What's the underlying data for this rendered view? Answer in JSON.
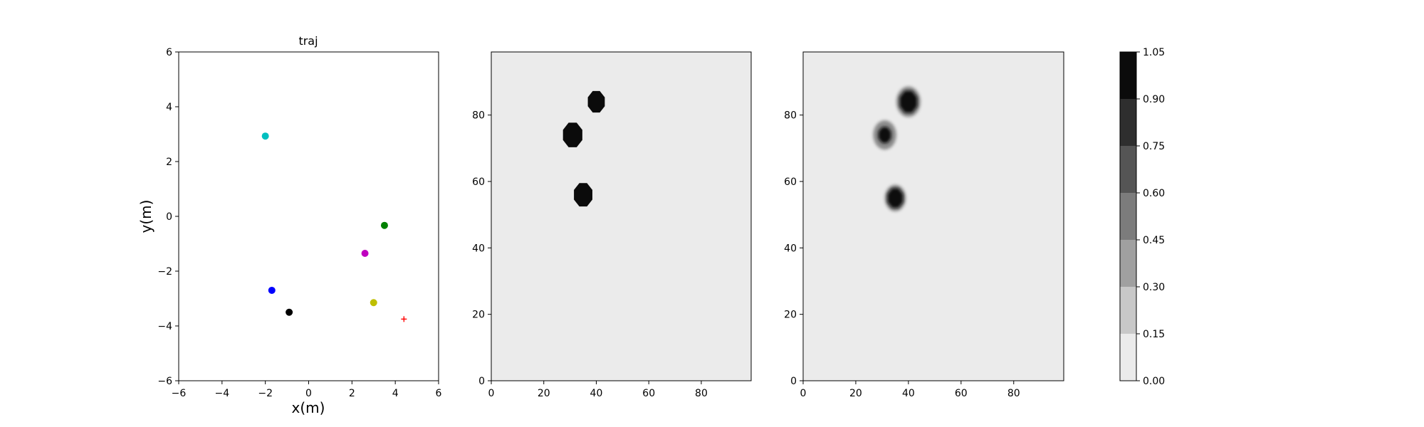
{
  "chart_data": [
    {
      "type": "scatter",
      "title": "traj",
      "xlabel": "x(m)",
      "ylabel": "y(m)",
      "xlim": [
        -6,
        6
      ],
      "ylim": [
        -6,
        6
      ],
      "xticks": [
        -6,
        -4,
        -2,
        0,
        2,
        4,
        6
      ],
      "yticks": [
        -6,
        -4,
        -2,
        0,
        2,
        4,
        6
      ],
      "grid": false,
      "points": [
        {
          "x": -2.0,
          "y": 2.93,
          "color": "#00bfbf",
          "marker": "circle"
        },
        {
          "x": 3.5,
          "y": -0.33,
          "color": "#008000",
          "marker": "circle"
        },
        {
          "x": 2.6,
          "y": -1.35,
          "color": "#bf00bf",
          "marker": "circle"
        },
        {
          "x": -1.7,
          "y": -2.7,
          "color": "#0000ff",
          "marker": "circle"
        },
        {
          "x": 3.0,
          "y": -3.15,
          "color": "#bfbf00",
          "marker": "circle"
        },
        {
          "x": -0.9,
          "y": -3.5,
          "color": "#000000",
          "marker": "circle"
        },
        {
          "x": 4.4,
          "y": -3.75,
          "color": "#ff0000",
          "marker": "plus"
        }
      ]
    },
    {
      "type": "heatmap",
      "title": "",
      "xlim": [
        0,
        99
      ],
      "ylim": [
        0,
        99
      ],
      "xticks": [
        0,
        20,
        40,
        60,
        80
      ],
      "yticks": [
        0,
        20,
        40,
        60,
        80
      ],
      "background_level": 0.0,
      "blobs": [
        {
          "x": 40,
          "y": 84,
          "r": 3.5,
          "level": 1.0
        },
        {
          "x": 31,
          "y": 74,
          "r": 4,
          "level": 1.0
        },
        {
          "x": 35,
          "y": 56,
          "r": 3.8,
          "level": 1.0
        }
      ]
    },
    {
      "type": "heatmap",
      "title": "",
      "xlim": [
        0,
        99
      ],
      "ylim": [
        0,
        99
      ],
      "xticks": [
        0,
        20,
        40,
        60,
        80
      ],
      "yticks": [
        0,
        20,
        40,
        60,
        80
      ],
      "background_level": 0.0,
      "blobs": [
        {
          "x": 40,
          "y": 84,
          "r": 3.6,
          "level": 1.0,
          "halo": 4.6
        },
        {
          "x": 31,
          "y": 74,
          "r": 2.6,
          "level": 1.0,
          "halo": 4.4
        },
        {
          "x": 35,
          "y": 55,
          "r": 3.2,
          "level": 1.0,
          "halo": 4.0
        }
      ]
    }
  ],
  "colorbar": {
    "levels": [
      0.0,
      0.15,
      0.3,
      0.45,
      0.6,
      0.75,
      0.9,
      1.05
    ],
    "tick_labels": [
      "0.00",
      "0.15",
      "0.30",
      "0.45",
      "0.60",
      "0.75",
      "0.90",
      "1.05"
    ],
    "colors": [
      "#ebebeb",
      "#c8c8c8",
      "#a0a0a0",
      "#7c7c7c",
      "#555555",
      "#2e2e2e",
      "#0b0b0b"
    ]
  }
}
